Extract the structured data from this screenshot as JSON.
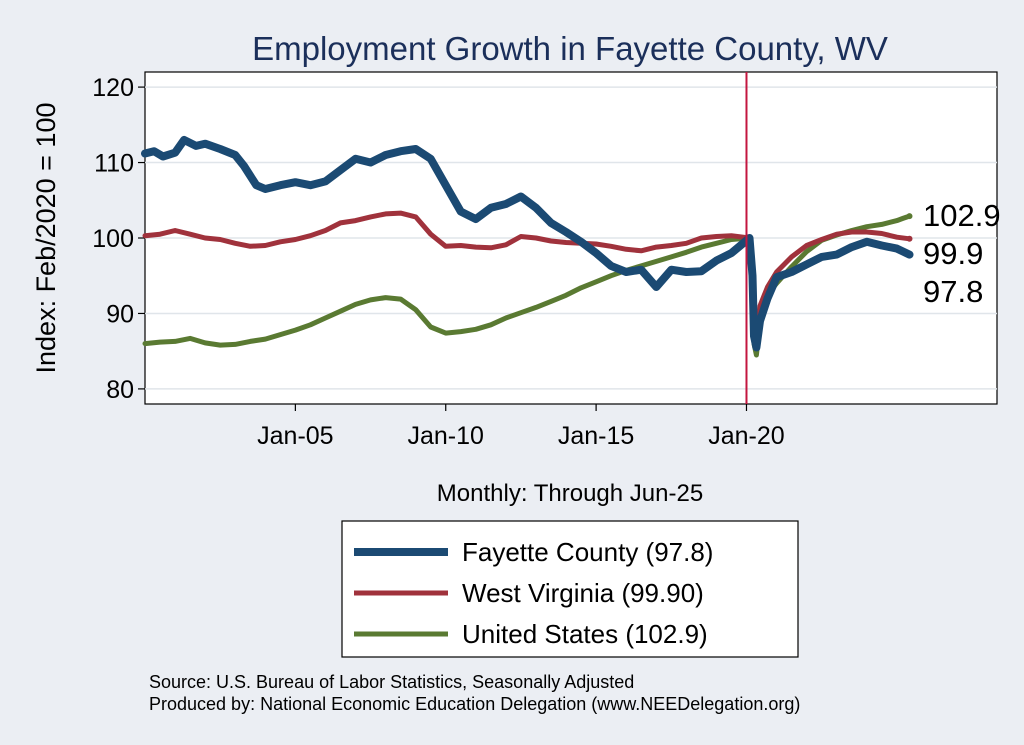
{
  "chart_data": {
    "type": "line",
    "title": "Employment Growth in Fayette  County, WV",
    "ylabel": "Index: Feb/2020 = 100",
    "xlabel": "Monthly: Through Jun-25",
    "ylim": [
      78,
      122
    ],
    "xlim": [
      2000.0,
      2028.33
    ],
    "yticks": [
      80,
      90,
      100,
      110,
      120
    ],
    "xticks": [
      {
        "label": "Jan-05",
        "value": 2005.0
      },
      {
        "label": "Jan-10",
        "value": 2010.0
      },
      {
        "label": "Jan-15",
        "value": 2015.0
      },
      {
        "label": "Jan-20",
        "value": 2020.0
      }
    ],
    "reference_line": {
      "x": 2020.0,
      "color": "#c3163f"
    },
    "grid": true,
    "series": [
      {
        "name": "United States",
        "legend": "United States (102.9)",
        "color": "#5a7a32",
        "width": 5,
        "end_label": "102.9",
        "points": [
          [
            2000.0,
            86.0
          ],
          [
            2000.5,
            86.2
          ],
          [
            2001.0,
            86.3
          ],
          [
            2001.5,
            86.7
          ],
          [
            2002.0,
            86.1
          ],
          [
            2002.5,
            85.8
          ],
          [
            2003.0,
            85.9
          ],
          [
            2003.5,
            86.3
          ],
          [
            2004.0,
            86.6
          ],
          [
            2004.5,
            87.2
          ],
          [
            2005.0,
            87.8
          ],
          [
            2005.5,
            88.5
          ],
          [
            2006.0,
            89.4
          ],
          [
            2006.5,
            90.3
          ],
          [
            2007.0,
            91.2
          ],
          [
            2007.5,
            91.8
          ],
          [
            2008.0,
            92.1
          ],
          [
            2008.5,
            91.9
          ],
          [
            2009.0,
            90.5
          ],
          [
            2009.5,
            88.2
          ],
          [
            2010.0,
            87.4
          ],
          [
            2010.5,
            87.6
          ],
          [
            2011.0,
            87.9
          ],
          [
            2011.5,
            88.5
          ],
          [
            2012.0,
            89.4
          ],
          [
            2012.5,
            90.1
          ],
          [
            2013.0,
            90.8
          ],
          [
            2013.5,
            91.6
          ],
          [
            2014.0,
            92.4
          ],
          [
            2014.5,
            93.4
          ],
          [
            2015.0,
            94.2
          ],
          [
            2015.5,
            95.0
          ],
          [
            2016.0,
            95.7
          ],
          [
            2016.5,
            96.3
          ],
          [
            2017.0,
            96.9
          ],
          [
            2017.5,
            97.5
          ],
          [
            2018.0,
            98.1
          ],
          [
            2018.5,
            98.8
          ],
          [
            2019.0,
            99.3
          ],
          [
            2019.5,
            99.8
          ],
          [
            2020.1,
            100.0
          ],
          [
            2020.2,
            95.0
          ],
          [
            2020.25,
            86.0
          ],
          [
            2020.33,
            84.5
          ],
          [
            2020.4,
            87.0
          ],
          [
            2020.5,
            90.0
          ],
          [
            2020.7,
            92.5
          ],
          [
            2021.0,
            94.0
          ],
          [
            2021.5,
            96.2
          ],
          [
            2022.0,
            98.2
          ],
          [
            2022.5,
            99.7
          ],
          [
            2023.0,
            100.4
          ],
          [
            2023.5,
            101.0
          ],
          [
            2024.0,
            101.5
          ],
          [
            2024.5,
            101.8
          ],
          [
            2025.0,
            102.3
          ],
          [
            2025.2,
            102.6
          ],
          [
            2025.42,
            102.9
          ]
        ]
      },
      {
        "name": "West Virginia",
        "legend": "West Virginia (99.90)",
        "color": "#a0323c",
        "width": 5,
        "end_label": "99.9",
        "points": [
          [
            2000.0,
            100.3
          ],
          [
            2000.5,
            100.5
          ],
          [
            2001.0,
            101.0
          ],
          [
            2001.5,
            100.5
          ],
          [
            2002.0,
            100.0
          ],
          [
            2002.5,
            99.8
          ],
          [
            2003.0,
            99.3
          ],
          [
            2003.5,
            98.9
          ],
          [
            2004.0,
            99.0
          ],
          [
            2004.5,
            99.5
          ],
          [
            2005.0,
            99.8
          ],
          [
            2005.5,
            100.3
          ],
          [
            2006.0,
            101.0
          ],
          [
            2006.5,
            102.0
          ],
          [
            2007.0,
            102.3
          ],
          [
            2007.5,
            102.8
          ],
          [
            2008.0,
            103.2
          ],
          [
            2008.5,
            103.3
          ],
          [
            2009.0,
            102.8
          ],
          [
            2009.5,
            100.5
          ],
          [
            2010.0,
            98.9
          ],
          [
            2010.5,
            99.0
          ],
          [
            2011.0,
            98.8
          ],
          [
            2011.5,
            98.7
          ],
          [
            2012.0,
            99.1
          ],
          [
            2012.5,
            100.2
          ],
          [
            2013.0,
            100.0
          ],
          [
            2013.5,
            99.6
          ],
          [
            2014.0,
            99.4
          ],
          [
            2014.5,
            99.3
          ],
          [
            2015.0,
            99.2
          ],
          [
            2015.5,
            98.9
          ],
          [
            2016.0,
            98.5
          ],
          [
            2016.5,
            98.3
          ],
          [
            2017.0,
            98.8
          ],
          [
            2017.5,
            99.0
          ],
          [
            2018.0,
            99.3
          ],
          [
            2018.5,
            100.0
          ],
          [
            2019.0,
            100.2
          ],
          [
            2019.5,
            100.3
          ],
          [
            2020.1,
            100.0
          ],
          [
            2020.2,
            95.0
          ],
          [
            2020.25,
            89.0
          ],
          [
            2020.33,
            87.5
          ],
          [
            2020.45,
            91.0
          ],
          [
            2020.7,
            93.5
          ],
          [
            2021.0,
            95.5
          ],
          [
            2021.5,
            97.5
          ],
          [
            2022.0,
            99.0
          ],
          [
            2022.5,
            99.8
          ],
          [
            2023.0,
            100.5
          ],
          [
            2023.5,
            100.8
          ],
          [
            2024.0,
            100.8
          ],
          [
            2024.5,
            100.6
          ],
          [
            2025.0,
            100.1
          ],
          [
            2025.42,
            99.9
          ]
        ]
      },
      {
        "name": "Fayette County",
        "legend": "Fayette  County (97.8)",
        "color": "#1b4a73",
        "width": 8,
        "end_label": "97.8",
        "points": [
          [
            2000.0,
            111.2
          ],
          [
            2000.3,
            111.5
          ],
          [
            2000.6,
            110.8
          ],
          [
            2001.0,
            111.3
          ],
          [
            2001.3,
            113.0
          ],
          [
            2001.7,
            112.2
          ],
          [
            2002.0,
            112.5
          ],
          [
            2002.5,
            111.8
          ],
          [
            2003.0,
            111.0
          ],
          [
            2003.3,
            109.5
          ],
          [
            2003.7,
            107.0
          ],
          [
            2004.0,
            106.5
          ],
          [
            2004.5,
            107.0
          ],
          [
            2005.0,
            107.4
          ],
          [
            2005.5,
            107.0
          ],
          [
            2006.0,
            107.5
          ],
          [
            2006.5,
            109.0
          ],
          [
            2007.0,
            110.5
          ],
          [
            2007.5,
            110.0
          ],
          [
            2008.0,
            111.0
          ],
          [
            2008.5,
            111.5
          ],
          [
            2009.0,
            111.8
          ],
          [
            2009.5,
            110.5
          ],
          [
            2010.0,
            107.0
          ],
          [
            2010.5,
            103.5
          ],
          [
            2011.0,
            102.5
          ],
          [
            2011.5,
            104.0
          ],
          [
            2012.0,
            104.5
          ],
          [
            2012.5,
            105.5
          ],
          [
            2013.0,
            104.0
          ],
          [
            2013.5,
            102.0
          ],
          [
            2014.0,
            100.8
          ],
          [
            2014.5,
            99.5
          ],
          [
            2015.0,
            98.0
          ],
          [
            2015.5,
            96.3
          ],
          [
            2016.0,
            95.5
          ],
          [
            2016.5,
            95.8
          ],
          [
            2017.0,
            93.5
          ],
          [
            2017.5,
            95.8
          ],
          [
            2018.0,
            95.5
          ],
          [
            2018.5,
            95.6
          ],
          [
            2019.0,
            97.0
          ],
          [
            2019.5,
            98.0
          ],
          [
            2020.1,
            100.0
          ],
          [
            2020.2,
            95.0
          ],
          [
            2020.25,
            87.0
          ],
          [
            2020.33,
            85.5
          ],
          [
            2020.45,
            89.0
          ],
          [
            2020.7,
            92.0
          ],
          [
            2021.0,
            94.8
          ],
          [
            2021.5,
            95.5
          ],
          [
            2022.0,
            96.5
          ],
          [
            2022.5,
            97.5
          ],
          [
            2023.0,
            97.8
          ],
          [
            2023.5,
            98.8
          ],
          [
            2024.0,
            99.5
          ],
          [
            2024.5,
            99.0
          ],
          [
            2025.0,
            98.6
          ],
          [
            2025.42,
            97.8
          ]
        ]
      }
    ]
  },
  "source_line_1": "Source: U.S. Bureau of Labor Statistics, Seasonally Adjusted",
  "source_line_2": "Produced by: National Economic Education Delegation (www.NEEDelegation.org)"
}
